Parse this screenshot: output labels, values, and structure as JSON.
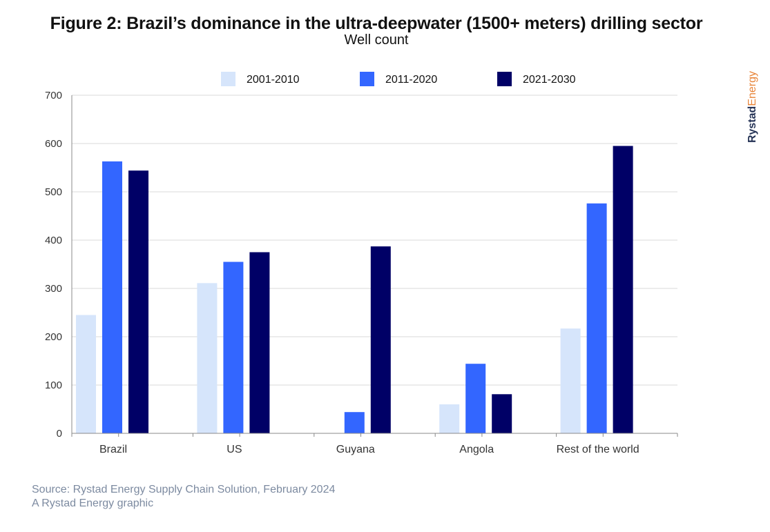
{
  "header": {
    "title": "Figure 2: Brazil’s dominance in the ultra-deepwater (1500+ meters) drilling sector",
    "subtitle": "Well count"
  },
  "brand": {
    "part1": "Rystad",
    "part2": "Energy",
    "color1": "#243255",
    "color2": "#e8853a"
  },
  "footer": {
    "source": "Source: Rystad Energy Supply Chain Solution, February 2024",
    "credit": "A Rystad Energy graphic"
  },
  "chart_data": {
    "type": "bar",
    "title": "Figure 2: Brazil’s dominance in the ultra-deepwater (1500+ meters) drilling sector",
    "ylabel": "Well count",
    "categories": [
      "Brazil",
      "US",
      "Guyana",
      "Angola",
      "Rest of the world"
    ],
    "series": [
      {
        "name": "2001-2010",
        "color": "#d6e5fb",
        "values": [
          245,
          311,
          0,
          60,
          217
        ]
      },
      {
        "name": "2011-2020",
        "color": "#3366ff",
        "values": [
          563,
          355,
          44,
          144,
          476
        ]
      },
      {
        "name": "2021-2030",
        "color": "#000066",
        "values": [
          544,
          375,
          387,
          81,
          595
        ]
      }
    ],
    "ylim": [
      0,
      700
    ],
    "yticks": [
      0,
      100,
      200,
      300,
      400,
      500,
      600,
      700
    ],
    "grid": true,
    "legend": "top-center"
  }
}
